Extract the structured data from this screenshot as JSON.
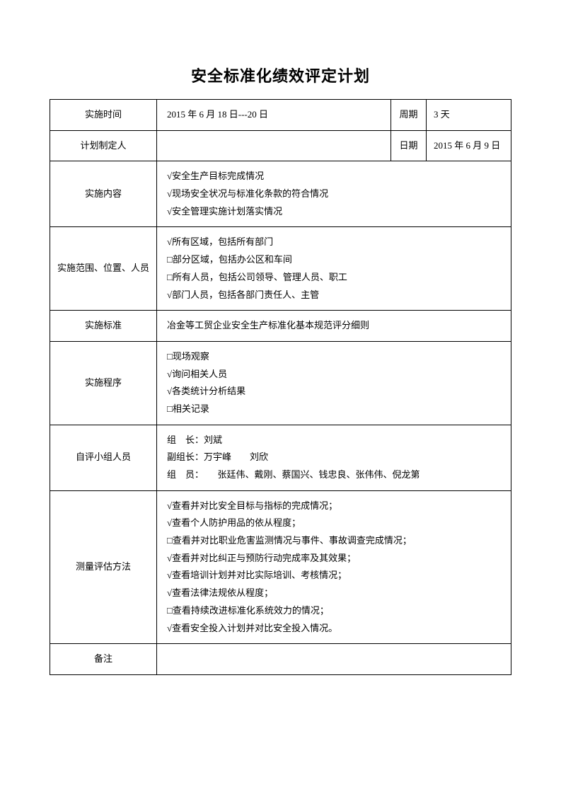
{
  "title": "安全标准化绩效评定计划",
  "header": {
    "row1": {
      "label": "实施时间",
      "value1": "2015 年 6 月 18 日---20 日",
      "label2": "周期",
      "value2": "3 天"
    },
    "row2": {
      "label": "计划制定人",
      "value1": "",
      "label2": "日期",
      "value2": "2015 年 6 月 9 日"
    }
  },
  "sections": {
    "content": {
      "label": "实施内容",
      "items": [
        "√安全生产目标完成情况",
        "√现场安全状况与标准化条款的符合情况",
        "√安全管理实施计划落实情况"
      ]
    },
    "scope": {
      "label": "实施范围、位置、人员",
      "items": [
        "√所有区域，包括所有部门",
        "□部分区域，包括办公区和车间",
        "□所有人员，包括公司领导、管理人员、职工",
        "√部门人员，包括各部门责任人、主管"
      ]
    },
    "standard": {
      "label": "实施标准",
      "text": "冶金等工贸企业安全生产标准化基本规范评分细则"
    },
    "procedure": {
      "label": "实施程序",
      "items": [
        "□现场观察",
        "√询问相关人员",
        "√各类统计分析结果",
        "□相关记录"
      ]
    },
    "team": {
      "label": "自评小组人员",
      "items": [
        "组　长：刘斌",
        "副组长：万宇峰　　刘欣",
        "组　员：　　张廷伟、戴刚、蔡国兴、钱忠良、张伟伟、倪龙第"
      ]
    },
    "method": {
      "label": "测量评估方法",
      "items": [
        "√查看并对比安全目标与指标的完成情况；",
        "√查看个人防护用品的依从程度；",
        "□查看并对比职业危害监测情况与事件、事故调查完成情况；",
        "√查看并对比纠正与预防行动完成率及其效果；",
        "√查看培训计划并对比实际培训、考核情况；",
        "√查看法律法规依从程度；",
        "□查看持续改进标准化系统效力的情况；",
        "√查看安全投入计划并对比安全投入情况。"
      ]
    },
    "remark": {
      "label": "备注",
      "text": ""
    }
  }
}
